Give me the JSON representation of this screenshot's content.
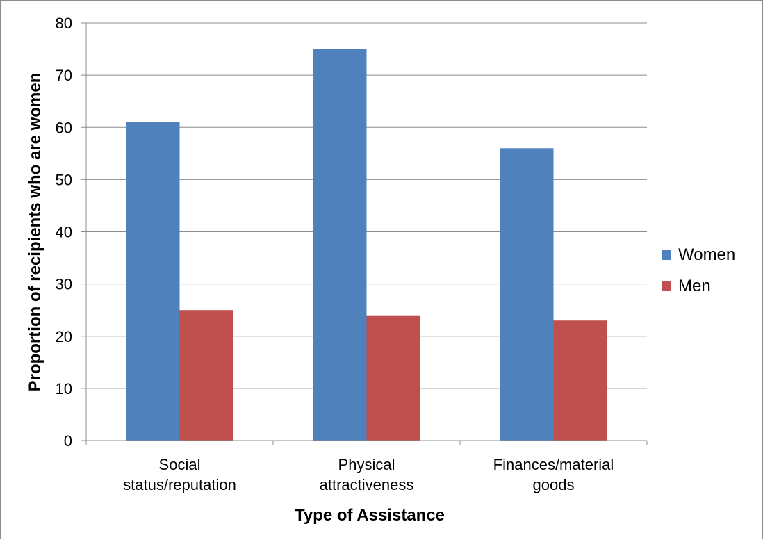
{
  "chart_data": {
    "type": "bar",
    "categories": [
      "Social status/reputation",
      "Physical attractiveness",
      "Finances/material goods"
    ],
    "category_label_lines": [
      [
        "Social",
        "status/reputation"
      ],
      [
        "Physical",
        "attractiveness"
      ],
      [
        "Finances/material",
        "goods"
      ]
    ],
    "series": [
      {
        "name": "Women",
        "color": "#4F81BD",
        "values": [
          61,
          75,
          56
        ]
      },
      {
        "name": "Men",
        "color": "#C0504D",
        "values": [
          25,
          24,
          23
        ]
      }
    ],
    "xlabel": "Type of Assistance",
    "ylabel": "Proportion of recipients who are women",
    "ylim": [
      0,
      80
    ],
    "yticks": [
      0,
      10,
      20,
      30,
      40,
      50,
      60,
      70,
      80
    ],
    "grid": true,
    "legend_position": "right"
  }
}
